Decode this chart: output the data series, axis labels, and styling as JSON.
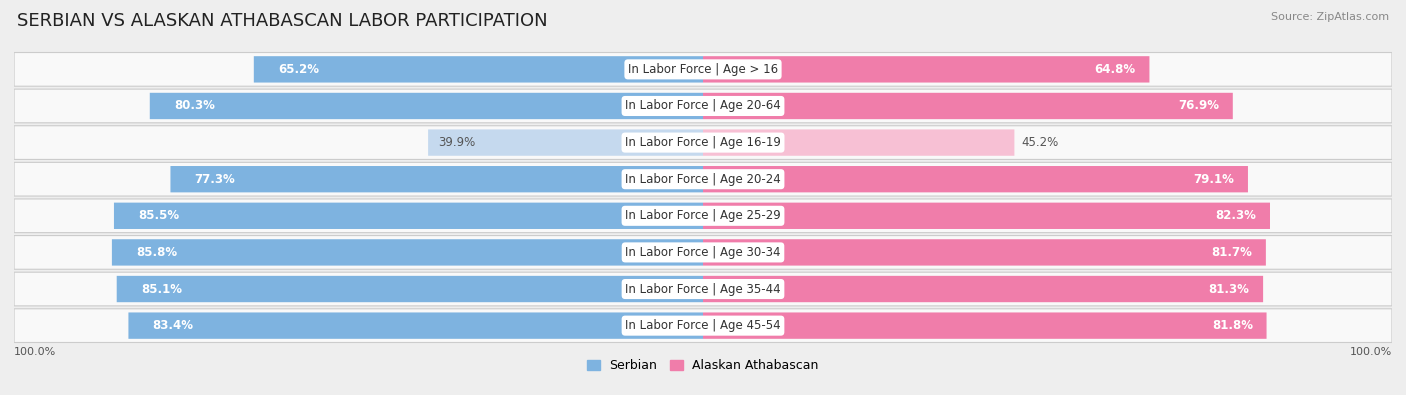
{
  "title": "SERBIAN VS ALASKAN ATHABASCAN LABOR PARTICIPATION",
  "source": "Source: ZipAtlas.com",
  "categories": [
    "In Labor Force | Age > 16",
    "In Labor Force | Age 20-64",
    "In Labor Force | Age 16-19",
    "In Labor Force | Age 20-24",
    "In Labor Force | Age 25-29",
    "In Labor Force | Age 30-34",
    "In Labor Force | Age 35-44",
    "In Labor Force | Age 45-54"
  ],
  "serbian_values": [
    65.2,
    80.3,
    39.9,
    77.3,
    85.5,
    85.8,
    85.1,
    83.4
  ],
  "alaskan_values": [
    64.8,
    76.9,
    45.2,
    79.1,
    82.3,
    81.7,
    81.3,
    81.8
  ],
  "serbian_color": "#7EB3E0",
  "serbian_color_light": "#C5D9EE",
  "alaskan_color": "#F07DAA",
  "alaskan_color_light": "#F7C0D4",
  "max_value": 100.0,
  "bg_color": "#eeeeee",
  "row_bg_color": "#f9f9f9",
  "label_fontsize": 8.5,
  "value_fontsize": 8.5,
  "title_fontsize": 13,
  "legend_serbian": "Serbian",
  "legend_alaskan": "Alaskan Athabascan"
}
